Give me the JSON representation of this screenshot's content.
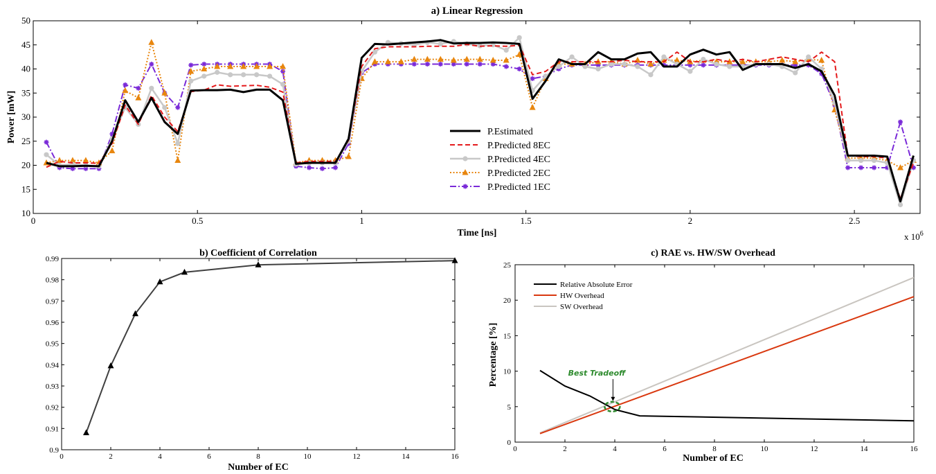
{
  "chart_data": [
    {
      "type": "line",
      "title": "a) Linear Regression",
      "xlabel": "Time [ns]",
      "ylabel": "Power [mW]",
      "x_multiplier_label": "x 10",
      "x_multiplier_exp": "6",
      "xlim": [
        0,
        2.7
      ],
      "ylim": [
        10,
        50
      ],
      "xticks": [
        0,
        0.5,
        1,
        1.5,
        2,
        2.5
      ],
      "xtick_labels": [
        "0",
        "0.5",
        "1",
        "1.5",
        "2",
        "2.5"
      ],
      "yticks": [
        10,
        15,
        20,
        25,
        30,
        35,
        40,
        45,
        50
      ],
      "ytick_labels": [
        "10",
        "15",
        "20",
        "25",
        "30",
        "35",
        "40",
        "45",
        "50"
      ],
      "legend_position": "center",
      "x": [
        0.04,
        0.08,
        0.12,
        0.16,
        0.2,
        0.24,
        0.28,
        0.32,
        0.36,
        0.4,
        0.44,
        0.48,
        0.52,
        0.56,
        0.6,
        0.64,
        0.68,
        0.72,
        0.76,
        0.8,
        0.84,
        0.88,
        0.92,
        0.96,
        1.0,
        1.04,
        1.08,
        1.12,
        1.16,
        1.2,
        1.24,
        1.28,
        1.32,
        1.36,
        1.4,
        1.44,
        1.48,
        1.52,
        1.56,
        1.6,
        1.64,
        1.68,
        1.72,
        1.76,
        1.8,
        1.84,
        1.88,
        1.92,
        1.96,
        2.0,
        2.04,
        2.08,
        2.12,
        2.16,
        2.2,
        2.24,
        2.28,
        2.32,
        2.36,
        2.4,
        2.44,
        2.48,
        2.52,
        2.56,
        2.6,
        2.64,
        2.68
      ],
      "series": [
        {
          "name": "P.Estimated",
          "color": "#000000",
          "values": [
            20.5,
            19.8,
            19.8,
            19.9,
            19.8,
            25,
            33.5,
            29,
            34,
            29,
            26.5,
            35.5,
            35.6,
            35.6,
            35.7,
            35.2,
            35.7,
            35.7,
            33.5,
            20.3,
            20.5,
            20.5,
            20.5,
            25.5,
            42.3,
            45.2,
            45.1,
            45.3,
            45.5,
            45.7,
            46,
            45.3,
            45.4,
            45.4,
            45.5,
            45.4,
            45.2,
            33.8,
            37.5,
            42,
            41,
            41,
            43.5,
            42,
            42,
            43.2,
            43.5,
            40.5,
            40.5,
            43,
            44,
            43,
            43.5,
            39.8,
            41,
            41,
            41,
            40.2,
            41,
            39.5,
            34.5,
            22,
            22,
            22,
            21.8,
            12.5,
            22
          ]
        },
        {
          "name": "P.Predicted 8EC",
          "color": "#e41a1c",
          "values": [
            19.6,
            20.8,
            20.5,
            20.5,
            20.4,
            24.5,
            32.5,
            28.5,
            34.5,
            30,
            27,
            35.3,
            35.6,
            36.7,
            36.4,
            36.5,
            36.6,
            36.2,
            35.2,
            20.5,
            20.8,
            20.8,
            20.8,
            25.2,
            40.5,
            44.2,
            44.6,
            44.6,
            44.6,
            44.7,
            44.7,
            44.7,
            45.1,
            44.7,
            44.8,
            44.7,
            44.9,
            38.8,
            39.5,
            41.5,
            41.5,
            41.5,
            41.5,
            41.5,
            41.8,
            41.5,
            41.5,
            41.5,
            43.5,
            41.5,
            41.5,
            42,
            41.5,
            42,
            41.5,
            42,
            42.5,
            42,
            41.5,
            43.5,
            41.5,
            22,
            21.8,
            21.8,
            21.5,
            13,
            20.5
          ]
        },
        {
          "name": "P.Predicted 4EC",
          "color": "#c8c8c8",
          "values": [
            22.2,
            20,
            20.2,
            20,
            19.8,
            25.5,
            32,
            28.5,
            36,
            32,
            24.5,
            37.5,
            38.5,
            39.3,
            38.8,
            38.8,
            38.8,
            38.5,
            36.8,
            20.2,
            20.5,
            20.5,
            20.5,
            25,
            39.5,
            43.5,
            45.5,
            45.3,
            45,
            45.5,
            45.2,
            45.7,
            45.2,
            44.8,
            45,
            43.9,
            46.5,
            35.5,
            38.5,
            40.5,
            42.5,
            40.5,
            40,
            41,
            41,
            40.5,
            38.8,
            42.5,
            41,
            39.5,
            42,
            41,
            40.5,
            40.5,
            41,
            41,
            40.5,
            39.2,
            42.5,
            40,
            33,
            21,
            21,
            21,
            20.5,
            11.8,
            21
          ]
        },
        {
          "name": "P.Predicted 2EC",
          "color": "#e8860e",
          "values": [
            20.5,
            21,
            21,
            21,
            20.5,
            23,
            35.5,
            34,
            45.5,
            35,
            21,
            39.5,
            40,
            40.5,
            40.5,
            40.5,
            40.5,
            40.5,
            40.5,
            20.5,
            21,
            21,
            21,
            21.8,
            38,
            41.5,
            41.5,
            41.5,
            42,
            42,
            42,
            41.8,
            42,
            42,
            41.8,
            41.8,
            43,
            32,
            38,
            41,
            41,
            41,
            41.5,
            41.5,
            41,
            41.8,
            41,
            41.8,
            41.8,
            41.5,
            41.8,
            41.5,
            41.5,
            41.5,
            41.5,
            41.5,
            41.8,
            41.5,
            42,
            41.8,
            31.5,
            21.5,
            21.5,
            21.5,
            21,
            19.5,
            21
          ]
        },
        {
          "name": "P.Predicted 1EC",
          "color": "#7a2ad8",
          "values": [
            24.8,
            19.5,
            19.3,
            19.3,
            19.3,
            26.5,
            36.7,
            36,
            41,
            35,
            32,
            40.8,
            41,
            41,
            41,
            41,
            41,
            41,
            39.5,
            19.8,
            19.5,
            19.3,
            19.5,
            24.5,
            39.2,
            41,
            41,
            41,
            41,
            41,
            41,
            41,
            41,
            41,
            41,
            40.5,
            40,
            38,
            38.5,
            40,
            40.8,
            40.8,
            40.8,
            40.8,
            40.8,
            40.8,
            40.8,
            40.8,
            40.8,
            40.8,
            40.8,
            40.8,
            40.8,
            40.8,
            40.8,
            40.8,
            40.8,
            40.8,
            40.8,
            39,
            32.5,
            19.5,
            19.5,
            19.5,
            19.5,
            29,
            19.5
          ]
        }
      ]
    },
    {
      "type": "line",
      "title": "b) Coefficient of Correlation",
      "xlabel": "Number of EC",
      "ylabel": "",
      "xlim": [
        0,
        16
      ],
      "ylim": [
        0.9,
        0.99
      ],
      "xticks": [
        0,
        2,
        4,
        6,
        8,
        10,
        12,
        14,
        16
      ],
      "xtick_labels": [
        "0",
        "2",
        "4",
        "6",
        "8",
        "10",
        "12",
        "14",
        "16"
      ],
      "yticks": [
        0.9,
        0.91,
        0.92,
        0.93,
        0.94,
        0.95,
        0.96,
        0.97,
        0.98,
        0.99
      ],
      "ytick_labels": [
        "0.9",
        "0.91",
        "0.92",
        "0.93",
        "0.94",
        "0.95",
        "0.96",
        "0.97",
        "0.98",
        "0.99"
      ],
      "x": [
        1,
        2,
        3,
        4,
        5,
        8,
        16
      ],
      "values": [
        0.908,
        0.9395,
        0.964,
        0.979,
        0.9835,
        0.987,
        0.989
      ],
      "color": "#404040"
    },
    {
      "type": "line",
      "title": "c) RAE vs. HW/SW Overhead",
      "xlabel": "Number of EC",
      "ylabel": "Percentage [%]",
      "xlim": [
        0,
        16
      ],
      "ylim": [
        0,
        25
      ],
      "xticks": [
        0,
        2,
        4,
        6,
        8,
        10,
        12,
        14,
        16
      ],
      "xtick_labels": [
        "0",
        "2",
        "4",
        "6",
        "8",
        "10",
        "12",
        "14",
        "16"
      ],
      "yticks": [
        0,
        5,
        10,
        15,
        20,
        25
      ],
      "ytick_labels": [
        "0",
        "5",
        "10",
        "15",
        "20",
        "25"
      ],
      "legend_position": "top-left",
      "annotation": "Best Tradeoff",
      "series": [
        {
          "name": "Relative Absolute Error",
          "color": "#000000",
          "x": [
            1,
            2,
            3,
            4,
            5,
            16
          ],
          "values": [
            10.1,
            7.9,
            6.5,
            4.6,
            3.7,
            3.0
          ]
        },
        {
          "name": "HW Overhead",
          "color": "#d9380f",
          "x": [
            1,
            16
          ],
          "values": [
            1.2,
            20.5
          ]
        },
        {
          "name": "SW Overhead",
          "color": "#c9c5c0",
          "x": [
            1,
            16
          ],
          "values": [
            1.3,
            23.2
          ]
        }
      ]
    }
  ]
}
